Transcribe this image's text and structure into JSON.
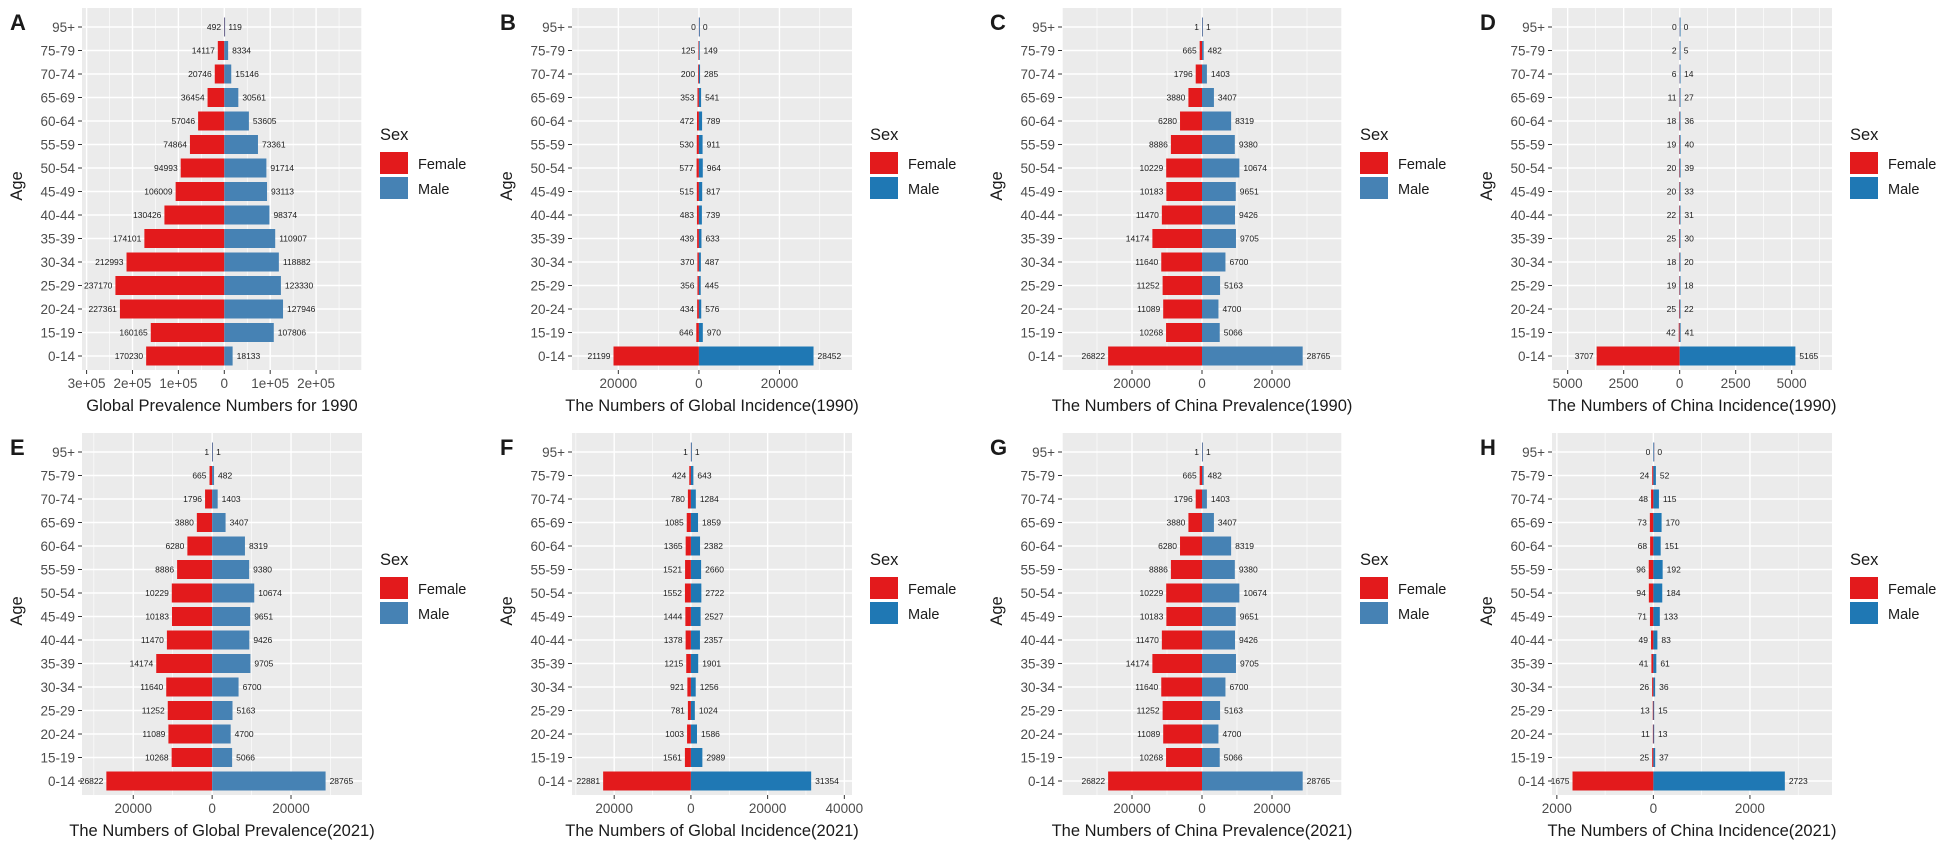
{
  "legend": {
    "title": "Sex",
    "female": "Female",
    "male": "Male"
  },
  "chart_data": [
    {
      "panel": "A",
      "type": "bar",
      "orientation": "horizontal-pyramid",
      "categories": [
        "0-14",
        "15-19",
        "20-24",
        "25-29",
        "30-34",
        "35-39",
        "40-44",
        "45-49",
        "50-54",
        "55-59",
        "60-64",
        "65-69",
        "70-74",
        "75-79",
        "95+"
      ],
      "series": [
        {
          "name": "Female",
          "values": [
            170230,
            160165,
            227361,
            237170,
            212993,
            174101,
            130426,
            106009,
            94993,
            74864,
            57046,
            36454,
            20746,
            14117,
            492
          ]
        },
        {
          "name": "Male",
          "values": [
            18133,
            107806,
            127946,
            123330,
            118882,
            110907,
            98374,
            93113,
            91714,
            73361,
            53605,
            30561,
            15146,
            8334,
            119
          ]
        }
      ],
      "xlabel": "Global Prevalence Numbers for 1990",
      "ylabel": "Age",
      "xlim": [
        -310000,
        300000
      ],
      "ticks": [
        -300000,
        -200000,
        -100000,
        0,
        100000,
        200000
      ],
      "tick_labels": [
        "3e+05",
        "2e+05",
        "1e+05",
        "0",
        "1e+05",
        "2e+05"
      ],
      "female_color": "#e31a1c",
      "male_color": "#4682b4"
    },
    {
      "panel": "B",
      "type": "bar",
      "orientation": "horizontal-pyramid",
      "categories": [
        "0-14",
        "15-19",
        "20-24",
        "25-29",
        "30-34",
        "35-39",
        "40-44",
        "45-49",
        "50-54",
        "55-59",
        "60-64",
        "65-69",
        "70-74",
        "75-79",
        "95+"
      ],
      "series": [
        {
          "name": "Female",
          "values": [
            21199,
            646,
            434,
            356,
            370,
            439,
            483,
            515,
            577,
            530,
            472,
            353,
            200,
            125,
            0
          ]
        },
        {
          "name": "Male",
          "values": [
            28452,
            970,
            576,
            445,
            487,
            633,
            739,
            817,
            964,
            911,
            789,
            541,
            285,
            149,
            0
          ]
        }
      ],
      "xlabel": "The Numbers of Global Incidence(1990)",
      "ylabel": "Age",
      "xlim": [
        -31500,
        38000
      ],
      "ticks": [
        -20000,
        0,
        20000
      ],
      "tick_labels": [
        "20000",
        "0",
        "20000"
      ],
      "female_color": "#e31a1c",
      "male_color": "#1f78b4"
    },
    {
      "panel": "C",
      "type": "bar",
      "orientation": "horizontal-pyramid",
      "categories": [
        "0-14",
        "15-19",
        "20-24",
        "25-29",
        "30-34",
        "35-39",
        "40-44",
        "45-49",
        "50-54",
        "55-59",
        "60-64",
        "65-69",
        "70-74",
        "75-79",
        "95+"
      ],
      "series": [
        {
          "name": "Female",
          "values": [
            26822,
            10268,
            11089,
            11252,
            11640,
            14174,
            11470,
            10183,
            10229,
            8886,
            6280,
            3880,
            1796,
            665,
            1
          ]
        },
        {
          "name": "Male",
          "values": [
            28765,
            5066,
            4700,
            5163,
            6700,
            9705,
            9426,
            9651,
            10674,
            9380,
            8319,
            3407,
            1403,
            482,
            1
          ]
        }
      ],
      "xlabel": "The Numbers of China Prevalence(1990)",
      "ylabel": "Age",
      "xlim": [
        -40000,
        40000
      ],
      "ticks": [
        -20000,
        0,
        20000
      ],
      "tick_labels": [
        "20000",
        "0",
        "20000"
      ],
      "female_color": "#e31a1c",
      "male_color": "#4682b4"
    },
    {
      "panel": "D",
      "type": "bar",
      "orientation": "horizontal-pyramid",
      "categories": [
        "0-14",
        "15-19",
        "20-24",
        "25-29",
        "30-34",
        "35-39",
        "40-44",
        "45-49",
        "50-54",
        "55-59",
        "60-64",
        "65-69",
        "70-74",
        "75-79",
        "95+"
      ],
      "series": [
        {
          "name": "Female",
          "values": [
            3707,
            42,
            25,
            19,
            18,
            25,
            22,
            20,
            20,
            19,
            18,
            11,
            6,
            2,
            0
          ]
        },
        {
          "name": "Male",
          "values": [
            5165,
            41,
            22,
            18,
            20,
            30,
            31,
            33,
            39,
            40,
            36,
            27,
            14,
            5,
            0
          ]
        }
      ],
      "xlabel": "The Numbers of China Incidence(1990)",
      "ylabel": "Age",
      "xlim": [
        -5700,
        6800
      ],
      "ticks": [
        -5000,
        -2500,
        0,
        2500,
        5000
      ],
      "tick_labels": [
        "5000",
        "2500",
        "0",
        "2500",
        "5000"
      ],
      "female_color": "#e31a1c",
      "male_color": "#1f78b4"
    },
    {
      "panel": "E",
      "type": "bar",
      "orientation": "horizontal-pyramid",
      "categories": [
        "0-14",
        "15-19",
        "20-24",
        "25-29",
        "30-34",
        "35-39",
        "40-44",
        "45-49",
        "50-54",
        "55-59",
        "60-64",
        "65-69",
        "70-74",
        "75-79",
        "95+"
      ],
      "series": [
        {
          "name": "Female",
          "values": [
            26822,
            10268,
            11089,
            11252,
            11640,
            14174,
            11470,
            10183,
            10229,
            8886,
            6280,
            3880,
            1796,
            665,
            1
          ]
        },
        {
          "name": "Male",
          "values": [
            28765,
            5066,
            4700,
            5163,
            6700,
            9705,
            9426,
            9651,
            10674,
            9380,
            8319,
            3407,
            1403,
            482,
            1
          ]
        }
      ],
      "xlabel": "The Numbers of Global Prevalence(2021)",
      "ylabel": "Age",
      "xlim": [
        -33000,
        38000
      ],
      "ticks": [
        -20000,
        0,
        20000
      ],
      "tick_labels": [
        "20000",
        "0",
        "20000"
      ],
      "female_color": "#e31a1c",
      "male_color": "#4682b4"
    },
    {
      "panel": "F",
      "type": "bar",
      "orientation": "horizontal-pyramid",
      "categories": [
        "0-14",
        "15-19",
        "20-24",
        "25-29",
        "30-34",
        "35-39",
        "40-44",
        "45-49",
        "50-54",
        "55-59",
        "60-64",
        "65-69",
        "70-74",
        "75-79",
        "95+"
      ],
      "series": [
        {
          "name": "Female",
          "values": [
            22881,
            1561,
            1003,
            781,
            921,
            1215,
            1378,
            1444,
            1552,
            1521,
            1365,
            1085,
            780,
            424,
            1
          ]
        },
        {
          "name": "Male",
          "values": [
            31354,
            2989,
            1586,
            1024,
            1256,
            1901,
            2357,
            2527,
            2722,
            2660,
            2382,
            1859,
            1284,
            643,
            1
          ]
        }
      ],
      "xlabel": "The Numbers of Global Incidence(2021)",
      "ylabel": "Age",
      "xlim": [
        -31000,
        42000
      ],
      "ticks": [
        -20000,
        0,
        20000,
        40000
      ],
      "tick_labels": [
        "20000",
        "0",
        "20000",
        "40000"
      ],
      "female_color": "#e31a1c",
      "male_color": "#1f78b4"
    },
    {
      "panel": "G",
      "type": "bar",
      "orientation": "horizontal-pyramid",
      "categories": [
        "0-14",
        "15-19",
        "20-24",
        "25-29",
        "30-34",
        "35-39",
        "40-44",
        "45-49",
        "50-54",
        "55-59",
        "60-64",
        "65-69",
        "70-74",
        "75-79",
        "95+"
      ],
      "series": [
        {
          "name": "Female",
          "values": [
            26822,
            10268,
            11089,
            11252,
            11640,
            14174,
            11470,
            10183,
            10229,
            8886,
            6280,
            3880,
            1796,
            665,
            1
          ]
        },
        {
          "name": "Male",
          "values": [
            28765,
            5066,
            4700,
            5163,
            6700,
            9705,
            9426,
            9651,
            10674,
            9380,
            8319,
            3407,
            1403,
            482,
            1
          ]
        }
      ],
      "xlabel": "The Numbers of China Prevalence(2021)",
      "ylabel": "Age",
      "xlim": [
        -40000,
        40000
      ],
      "ticks": [
        -20000,
        0,
        20000
      ],
      "tick_labels": [
        "20000",
        "0",
        "20000"
      ],
      "female_color": "#e31a1c",
      "male_color": "#4682b4"
    },
    {
      "panel": "H",
      "type": "bar",
      "orientation": "horizontal-pyramid",
      "categories": [
        "0-14",
        "15-19",
        "20-24",
        "25-29",
        "30-34",
        "35-39",
        "40-44",
        "45-49",
        "50-54",
        "55-59",
        "60-64",
        "65-69",
        "70-74",
        "75-79",
        "95+"
      ],
      "series": [
        {
          "name": "Female",
          "values": [
            1675,
            25,
            11,
            13,
            26,
            41,
            49,
            71,
            94,
            96,
            68,
            73,
            48,
            24,
            0
          ]
        },
        {
          "name": "Male",
          "values": [
            2723,
            37,
            13,
            15,
            36,
            61,
            83,
            133,
            184,
            192,
            151,
            170,
            115,
            52,
            0
          ]
        }
      ],
      "xlabel": "The Numbers of China Incidence(2021)",
      "ylabel": "Age",
      "xlim": [
        -2100,
        3700
      ],
      "ticks": [
        -2000,
        0,
        2000
      ],
      "tick_labels": [
        "2000",
        "0",
        "2000"
      ],
      "female_color": "#e31a1c",
      "male_color": "#1f78b4"
    }
  ]
}
